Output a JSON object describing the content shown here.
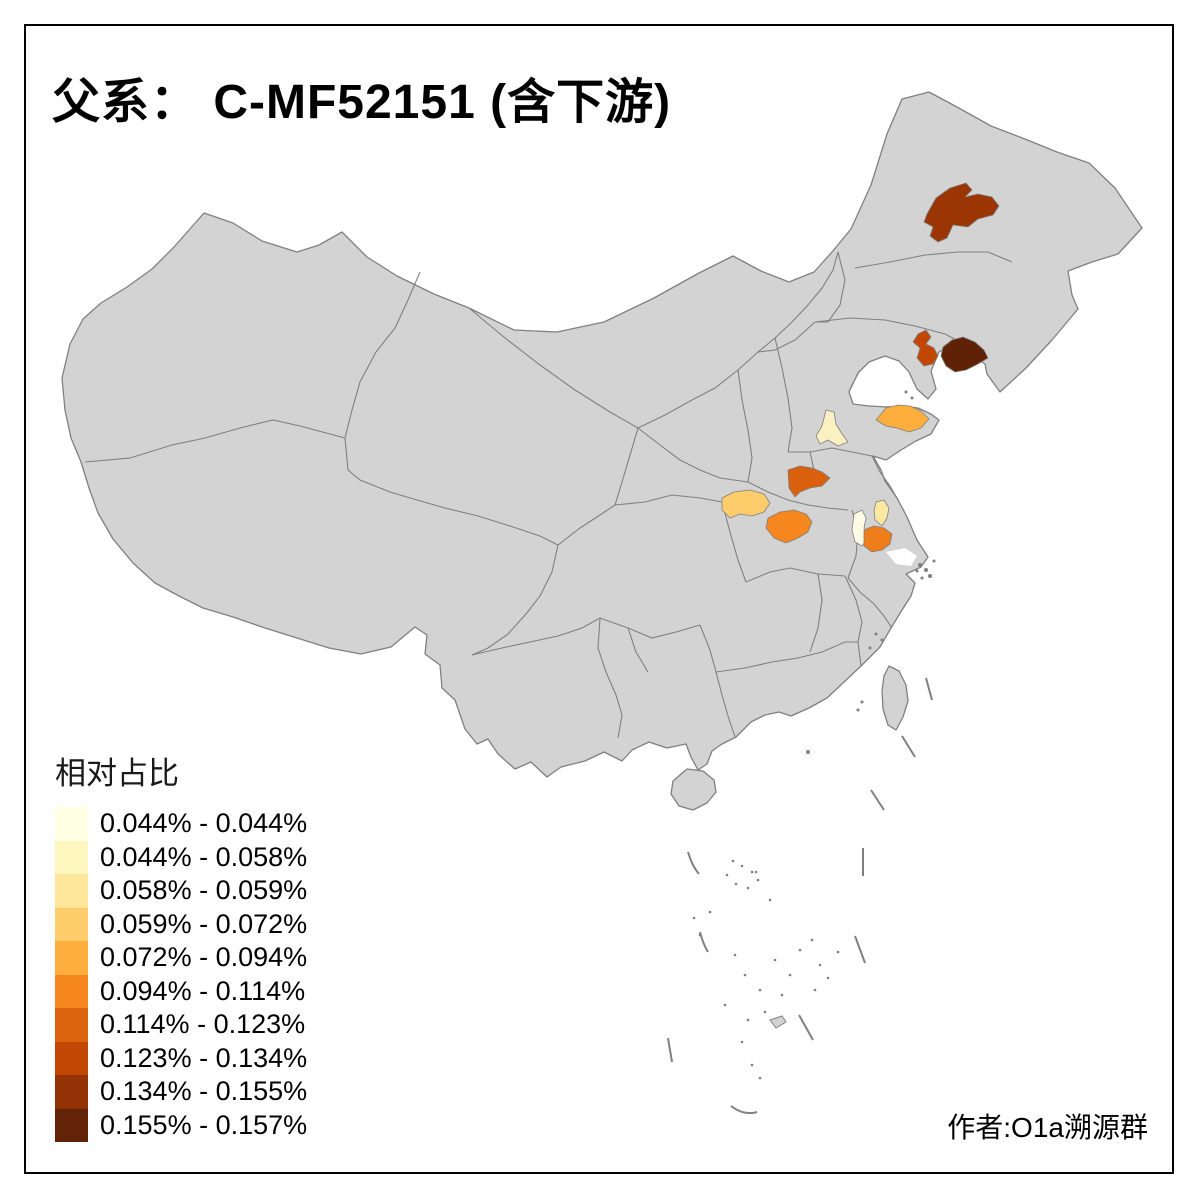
{
  "title": "父系： C-MF52151 (含下游)",
  "author": "作者:O1a溯源群",
  "legend": {
    "title": "相对占比",
    "items": [
      {
        "label": "0.044% - 0.044%",
        "color": "#FFFFE3"
      },
      {
        "label": "0.044% - 0.058%",
        "color": "#FFF6C0"
      },
      {
        "label": "0.058% - 0.059%",
        "color": "#FEE79A"
      },
      {
        "label": "0.059% - 0.072%",
        "color": "#FDCD6B"
      },
      {
        "label": "0.072% - 0.094%",
        "color": "#FDAE3D"
      },
      {
        "label": "0.094% - 0.114%",
        "color": "#F5871E"
      },
      {
        "label": "0.114% - 0.123%",
        "color": "#DD640E"
      },
      {
        "label": "0.123% - 0.134%",
        "color": "#C24704"
      },
      {
        "label": "0.134% - 0.155%",
        "color": "#933204"
      },
      {
        "label": "0.155% - 0.157%",
        "color": "#622306"
      }
    ]
  },
  "map": {
    "base_fill": "#D3D3D3",
    "border_color": "#808080",
    "sea_fill": "#FFFFFF",
    "highlighted_regions": [
      {
        "id": "northeast-harbin-area",
        "bin": "0.134% - 0.155%",
        "color": "#9B3604"
      },
      {
        "id": "liaoning-west-area",
        "bin": "0.123% - 0.134%",
        "color": "#C24704"
      },
      {
        "id": "liaoning-east-coastal-area",
        "bin": "0.155% - 0.157%",
        "color": "#5F2206"
      },
      {
        "id": "shandong-central-area",
        "bin": "0.044% - 0.058%",
        "color": "#FAF0C2"
      },
      {
        "id": "shandong-peninsula-area",
        "bin": "0.072% - 0.094%",
        "color": "#FDAE3D"
      },
      {
        "id": "henan-southeast-area",
        "bin": "0.114% - 0.123%",
        "color": "#DB600E"
      },
      {
        "id": "shaanxi-south-area",
        "bin": "0.059% - 0.072%",
        "color": "#FDCD6B"
      },
      {
        "id": "hubei-north-area",
        "bin": "0.094% - 0.114%",
        "color": "#F5871E"
      },
      {
        "id": "anhui-west-pale-area",
        "bin": "0.044% - 0.044%",
        "color": "#FEFBE5"
      },
      {
        "id": "anhui-north-yellow-area",
        "bin": "0.058% - 0.059%",
        "color": "#FAE7A1"
      },
      {
        "id": "anhui-central-orange-area",
        "bin": "0.094% - 0.114%",
        "color": "#EE7D1A"
      }
    ]
  },
  "chart_data": {
    "type": "choropleth_map",
    "title": "父系： C-MF52151 (含下游)",
    "legend_title": "相对占比",
    "bins": [
      "0.044% - 0.044%",
      "0.044% - 0.058%",
      "0.058% - 0.059%",
      "0.059% - 0.072%",
      "0.072% - 0.094%",
      "0.094% - 0.114%",
      "0.114% - 0.123%",
      "0.123% - 0.134%",
      "0.134% - 0.155%",
      "0.155% - 0.157%"
    ],
    "bin_colors": [
      "#FFFFE3",
      "#FFF6C0",
      "#FEE79A",
      "#FDCD6B",
      "#FDAE3D",
      "#F5871E",
      "#DD640E",
      "#C24704",
      "#933204",
      "#622306"
    ],
    "regions": [
      {
        "area": "northeast-harbin-area",
        "value_bin": "0.134% - 0.155%"
      },
      {
        "area": "liaoning-west-area",
        "value_bin": "0.123% - 0.134%"
      },
      {
        "area": "liaoning-east-coastal-area",
        "value_bin": "0.155% - 0.157%"
      },
      {
        "area": "shandong-central-area",
        "value_bin": "0.044% - 0.058%"
      },
      {
        "area": "shandong-peninsula-area",
        "value_bin": "0.072% - 0.094%"
      },
      {
        "area": "henan-southeast-area",
        "value_bin": "0.114% - 0.123%"
      },
      {
        "area": "shaanxi-south-area",
        "value_bin": "0.059% - 0.072%"
      },
      {
        "area": "hubei-north-area",
        "value_bin": "0.094% - 0.114%"
      },
      {
        "area": "anhui-west-pale-area",
        "value_bin": "0.044% - 0.044%"
      },
      {
        "area": "anhui-north-yellow-area",
        "value_bin": "0.058% - 0.059%"
      },
      {
        "area": "anhui-central-orange-area",
        "value_bin": "0.094% - 0.114%"
      }
    ],
    "legend_position": "bottom-left",
    "annotations": [
      "作者:O1a溯源群"
    ]
  }
}
